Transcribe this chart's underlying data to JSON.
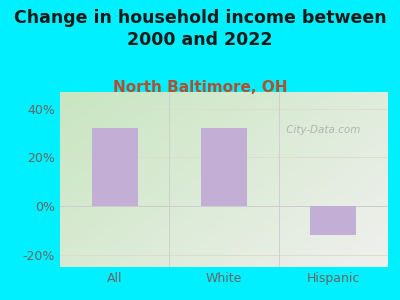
{
  "title": "Change in household income between\n2000 and 2022",
  "subtitle": "North Baltimore, OH",
  "categories": [
    "All",
    "White",
    "Hispanic"
  ],
  "values": [
    32.0,
    32.0,
    -12.0
  ],
  "bar_color": "#c3aed6",
  "bar_width": 0.42,
  "ylim": [
    -25,
    47
  ],
  "yticks": [
    -20,
    0,
    20,
    40
  ],
  "ytick_labels": [
    "-20%",
    "0%",
    "20%",
    "40%"
  ],
  "bg_color": "#00f0ff",
  "title_fontsize": 12.5,
  "title_color": "#1a1a1a",
  "subtitle_fontsize": 11,
  "subtitle_color": "#b05030",
  "tick_color": "#666666",
  "tick_fontsize": 9,
  "watermark": " City-Data.com",
  "watermark_color": "#aaaaaa",
  "grid_color": "#cccccc",
  "plot_bg_colors": [
    "#d8eecc",
    "#f8faf8",
    "#eef4ee",
    "#f5f5f0"
  ],
  "hline_color": "#ddddcc"
}
